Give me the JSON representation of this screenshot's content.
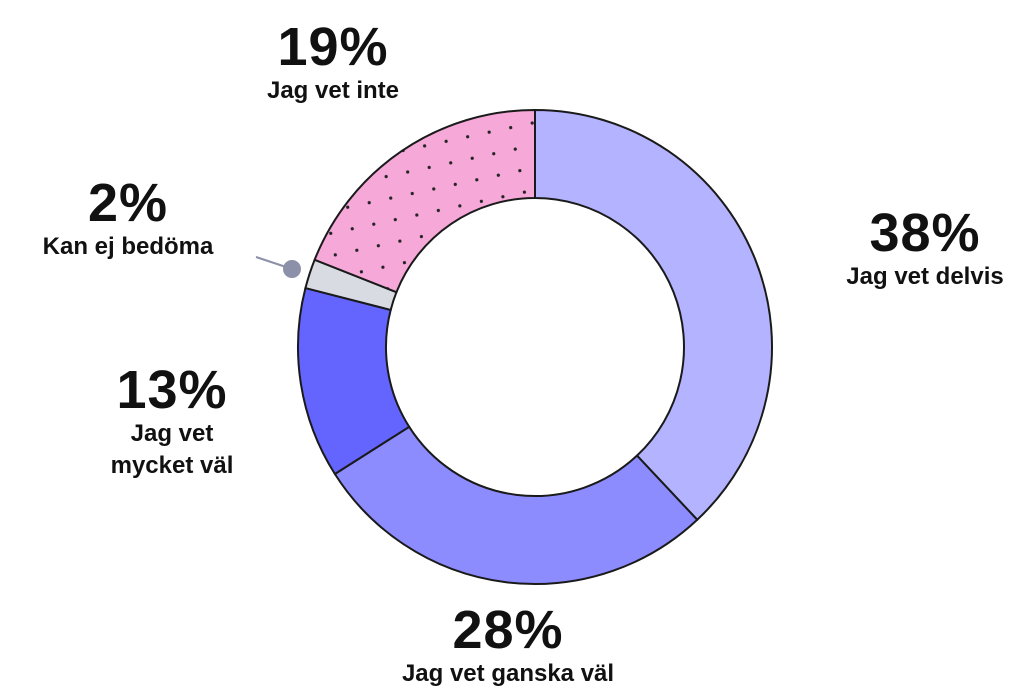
{
  "chart_data": {
    "type": "donut",
    "categories": [
      "Jag vet delvis",
      "Jag vet ganska väl",
      "Jag vet mycket väl",
      "Kan ej bedöma",
      "Jag vet inte"
    ],
    "values": [
      38,
      28,
      13,
      2,
      19
    ],
    "value_labels": [
      "38%",
      "28%",
      "13%",
      "2%",
      "19%"
    ],
    "colors": [
      "#b3b3ff",
      "#8c8cff",
      "#6464ff",
      "#d9dbe3",
      "#f6a8d8"
    ],
    "patterns": [
      null,
      null,
      null,
      null,
      "dots"
    ]
  }
}
